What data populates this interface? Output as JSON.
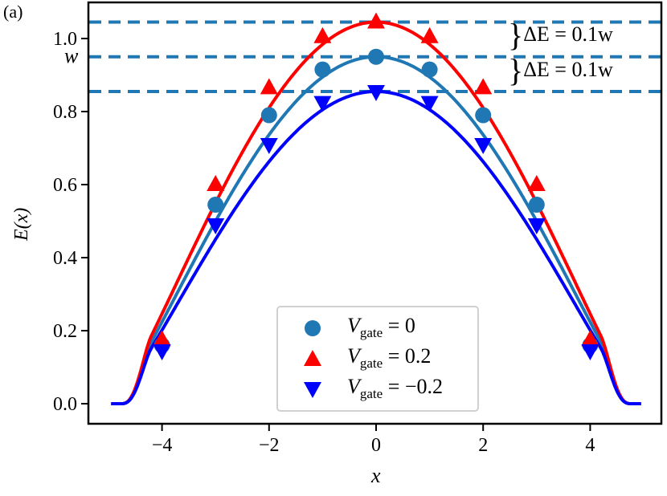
{
  "panel_label": "(a)",
  "colors": {
    "vgate0": "#1f77b4",
    "vgate_pos": "#ff0000",
    "vgate_neg": "#0000ff",
    "dashed": "#1f77b4"
  },
  "annotations": {
    "w_label": "w",
    "delta_e_upper": "ΔE = 0.1w",
    "delta_e_lower": "ΔE = 0.1w"
  },
  "legend": [
    {
      "symbol": "circle",
      "label_v": "V",
      "label_sub": "gate",
      "label_rest": " = 0",
      "color": "#1f77b4"
    },
    {
      "symbol": "triangle-up",
      "label_v": "V",
      "label_sub": "gate",
      "label_rest": " = 0.2",
      "color": "#ff0000"
    },
    {
      "symbol": "triangle-down",
      "label_v": "V",
      "label_sub": "gate",
      "label_rest": " = −0.2",
      "color": "#0000ff"
    }
  ],
  "chart_data": {
    "type": "line",
    "title": "",
    "xlabel": "x",
    "ylabel": "E(x)",
    "xlim": [
      -5.3,
      5.4
    ],
    "ylim": [
      -0.05,
      1.1
    ],
    "xticks": [
      "−4",
      "−2",
      "0",
      "2",
      "4"
    ],
    "yticks": [
      "0.0",
      "0.2",
      "0.4",
      "0.6",
      "0.8",
      "1.0"
    ],
    "hlines": [
      {
        "y": 1.045,
        "style": "dashed"
      },
      {
        "y": 0.95,
        "style": "dashed",
        "label": "w"
      },
      {
        "y": 0.855,
        "style": "dashed"
      }
    ],
    "markers_x": [
      -4,
      -3,
      -2,
      -1,
      0,
      1,
      2,
      3,
      4
    ],
    "series": [
      {
        "name": "V_gate = 0",
        "marker": "o",
        "values": [
          0.16,
          0.545,
          0.79,
          0.915,
          0.95,
          0.915,
          0.79,
          0.545,
          0.16
        ]
      },
      {
        "name": "V_gate = 0.2",
        "marker": "^",
        "values": [
          0.175,
          0.6,
          0.865,
          1.005,
          1.045,
          1.005,
          0.865,
          0.6,
          0.175
        ]
      },
      {
        "name": "V_gate = -0.2",
        "marker": "v",
        "values": [
          0.145,
          0.49,
          0.71,
          0.825,
          0.855,
          0.825,
          0.71,
          0.49,
          0.145
        ]
      }
    ],
    "curve_support": [
      -4.9,
      4.9
    ],
    "legend_position": "lower center"
  }
}
